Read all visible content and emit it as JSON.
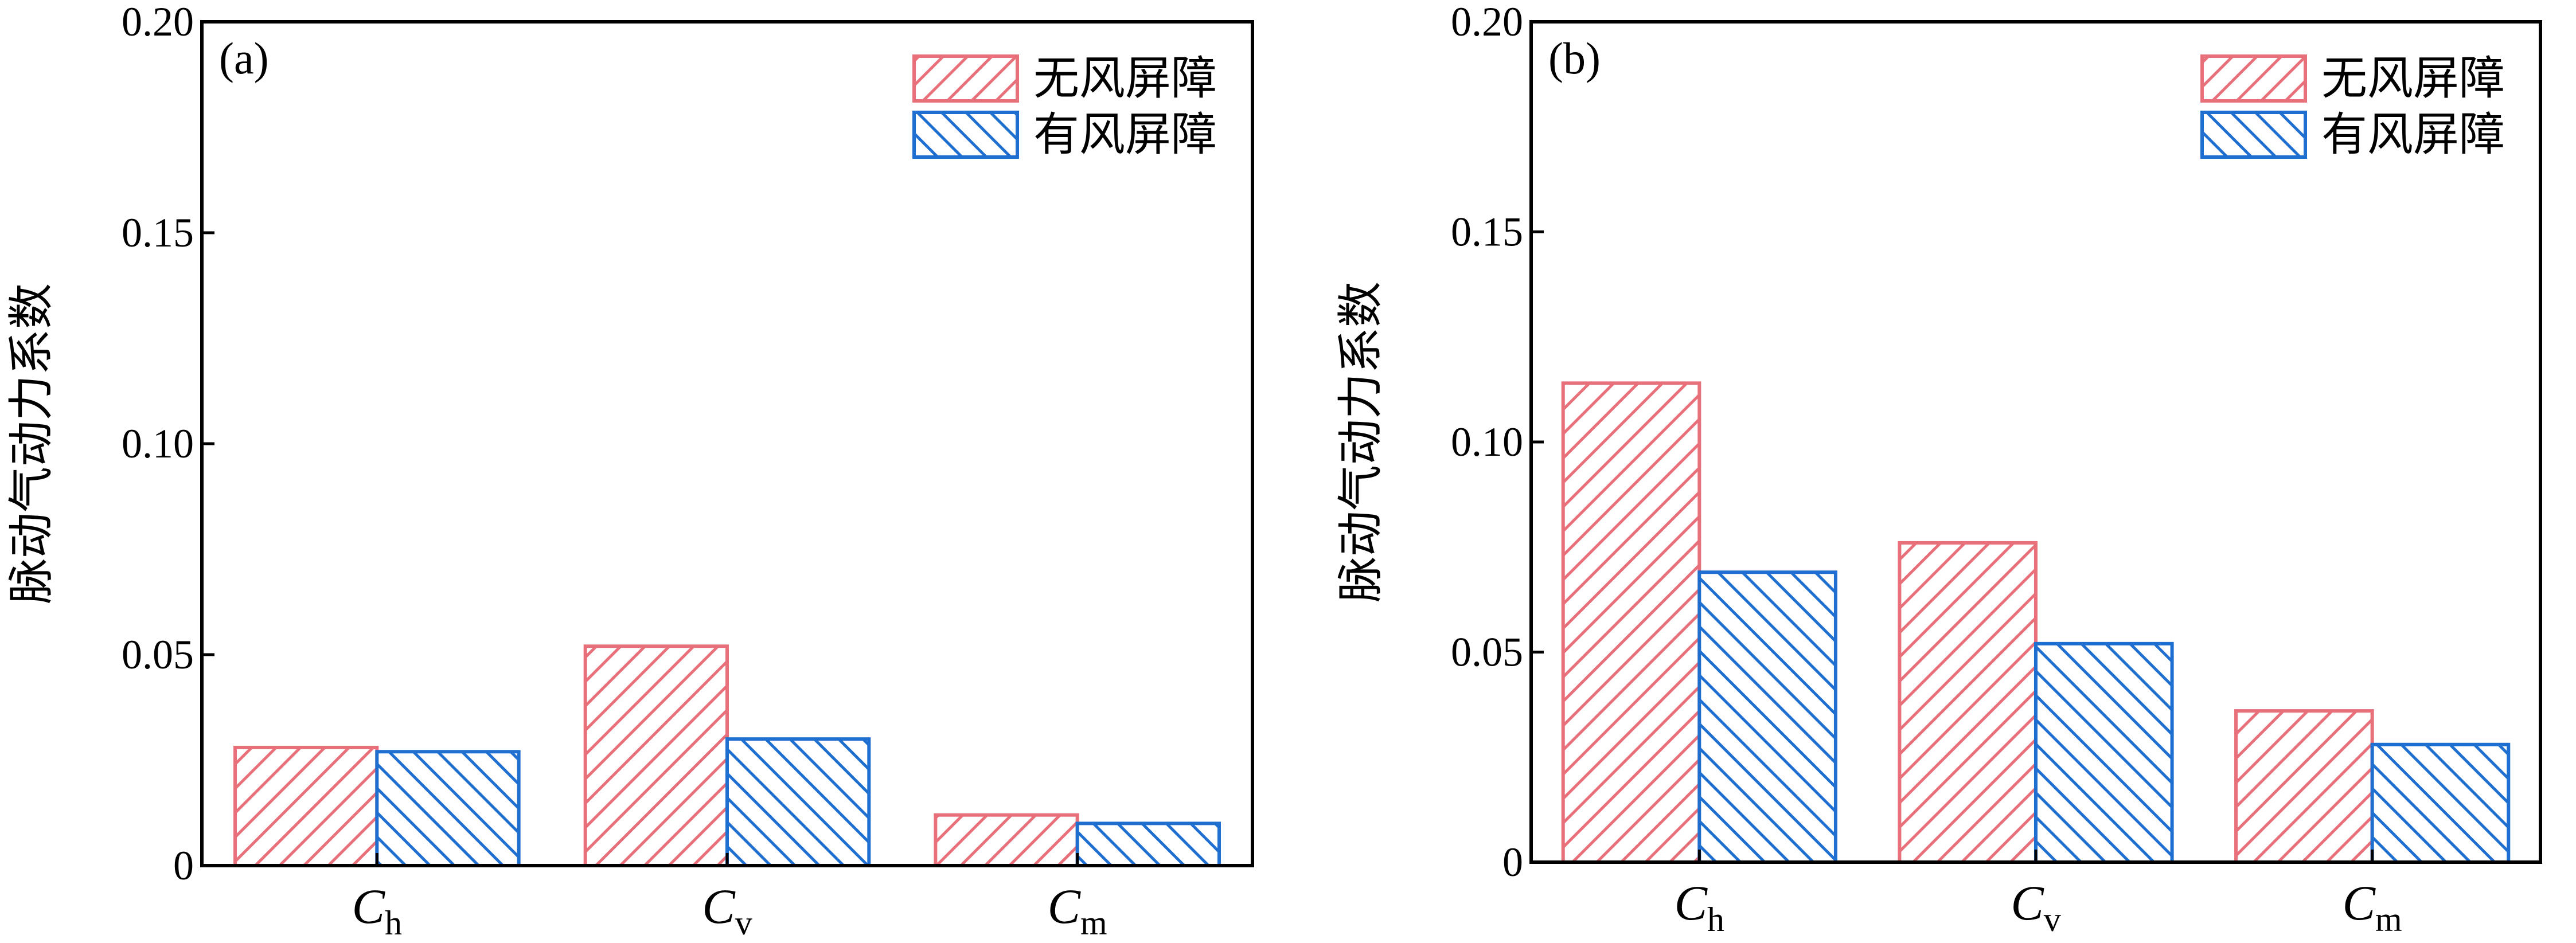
{
  "chart_data": [
    {
      "type": "bar",
      "panel_label": "(a)",
      "ylabel": "脉动气动力系数",
      "ylim": [
        0,
        0.2
      ],
      "yticks": [
        "0",
        "0.05",
        "0.10",
        "0.15",
        "0.20"
      ],
      "ytick_values": [
        0,
        0.05,
        0.1,
        0.15,
        0.2
      ],
      "categories": [
        {
          "main": "C",
          "sub": "h"
        },
        {
          "main": "C",
          "sub": "v"
        },
        {
          "main": "C",
          "sub": "m"
        }
      ],
      "series": [
        {
          "name": "无风屏障",
          "color": "#e8707a",
          "hatch": "forward",
          "values": [
            0.028,
            0.052,
            0.012
          ]
        },
        {
          "name": "有风屏障",
          "color": "#1f6fd0",
          "hatch": "backward",
          "values": [
            0.027,
            0.03,
            0.01
          ]
        }
      ],
      "legend": "top-right"
    },
    {
      "type": "bar",
      "panel_label": "(b)",
      "ylabel": "脉动气动力系数",
      "ylim": [
        0,
        0.2
      ],
      "yticks": [
        "0",
        "0.05",
        "0.10",
        "0.15",
        "0.20"
      ],
      "ytick_values": [
        0,
        0.05,
        0.1,
        0.15,
        0.2
      ],
      "categories": [
        {
          "main": "C",
          "sub": "h"
        },
        {
          "main": "C",
          "sub": "v"
        },
        {
          "main": "C",
          "sub": "m"
        }
      ],
      "series": [
        {
          "name": "无风屏障",
          "color": "#e8707a",
          "hatch": "forward",
          "values": [
            0.114,
            0.076,
            0.036
          ]
        },
        {
          "name": "有风屏障",
          "color": "#1f6fd0",
          "hatch": "backward",
          "values": [
            0.069,
            0.052,
            0.028
          ]
        }
      ],
      "legend": "top-right"
    }
  ]
}
